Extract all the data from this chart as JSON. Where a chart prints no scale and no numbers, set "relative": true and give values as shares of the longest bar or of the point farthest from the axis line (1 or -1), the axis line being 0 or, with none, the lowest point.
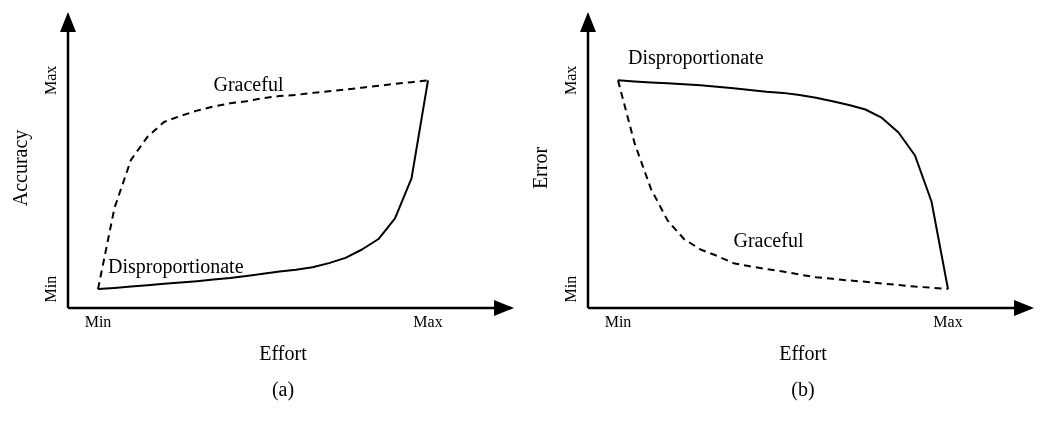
{
  "chart_data": [
    {
      "type": "line",
      "title": "(a)",
      "xlabel": "Effort",
      "ylabel": "Accuracy",
      "relative": true,
      "grid": false,
      "legend": false,
      "marker": "none",
      "annotations": [
        "Min",
        "Max"
      ],
      "categories": [
        "Min",
        null,
        null,
        null,
        null,
        null,
        null,
        null,
        null,
        null,
        null,
        null,
        null,
        null,
        null,
        null,
        null,
        null,
        null,
        null,
        "Max"
      ],
      "series": [
        {
          "name": "Graceful",
          "color": "#000000",
          "line_style": "dashed",
          "values": [
            0.083,
            0.44,
            0.651,
            0.752,
            0.817,
            0.844,
            0.867,
            0.885,
            0.899,
            0.908,
            0.922,
            0.931,
            0.936,
            0.945,
            0.952,
            0.96,
            0.968,
            0.976,
            0.985,
            0.992,
            1
          ]
        },
        {
          "name": "Disproportionate",
          "color": "#000000",
          "line_style": "solid",
          "values": [
            0.083,
            0.088,
            0.094,
            0.1,
            0.106,
            0.112,
            0.118,
            0.125,
            0.132,
            0.141,
            0.15,
            0.16,
            0.168,
            0.179,
            0.197,
            0.22,
            0.257,
            0.303,
            0.394,
            0.569,
            1
          ]
        }
      ]
    },
    {
      "type": "line",
      "title": "(b)",
      "xlabel": "Effort",
      "ylabel": "Error",
      "relative": true,
      "grid": false,
      "legend": false,
      "marker": "none",
      "annotations": [
        "Min",
        "Max"
      ],
      "categories": [
        "Min",
        null,
        null,
        null,
        null,
        null,
        null,
        null,
        null,
        null,
        null,
        null,
        null,
        null,
        null,
        null,
        null,
        null,
        null,
        null,
        "Max"
      ],
      "series": [
        {
          "name": "Disproportionate",
          "color": "#000000",
          "line_style": "solid",
          "values": [
            1,
            0.995,
            0.991,
            0.987,
            0.983,
            0.978,
            0.972,
            0.965,
            0.958,
            0.95,
            0.945,
            0.936,
            0.924,
            0.908,
            0.892,
            0.872,
            0.835,
            0.771,
            0.67,
            0.468,
            0.083
          ]
        },
        {
          "name": "Graceful",
          "color": "#000000",
          "line_style": "dashed",
          "values": [
            1,
            0.725,
            0.523,
            0.385,
            0.303,
            0.257,
            0.229,
            0.197,
            0.183,
            0.171,
            0.16,
            0.147,
            0.135,
            0.128,
            0.121,
            0.115,
            0.107,
            0.101,
            0.094,
            0.089,
            0.083
          ]
        }
      ]
    }
  ]
}
